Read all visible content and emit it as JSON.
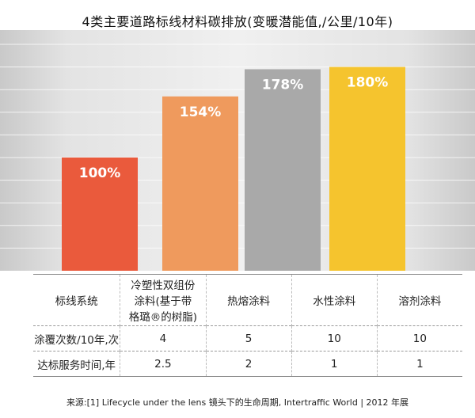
{
  "title": "4类主要道路标线材料碳排放(变暖潜能值,/公里/10年)",
  "chart_data": {
    "type": "bar",
    "categories": [
      "冷塑性双组份涂料(基于带格璐®的树脂)",
      "热熔涂料",
      "水性涂料",
      "溶剂涂料"
    ],
    "values": [
      100,
      154,
      178,
      180
    ],
    "unit": "%",
    "data_labels": [
      "100%",
      "154%",
      "178%",
      "180%"
    ],
    "colors": [
      "#ea5a3c",
      "#ef9a5d",
      "#a9a9a9",
      "#f5c42e"
    ],
    "ylim": [
      0,
      200
    ],
    "grid": true,
    "title": "4类主要道路标线材料碳排放(变暖潜能值,/公里/10年)"
  },
  "table": {
    "header": {
      "label": "标线系统",
      "cols": [
        [
          "冷塑性双组份",
          "涂料(基于带",
          "格璐®的树脂)"
        ],
        [
          "热熔涂料"
        ],
        [
          "水性涂料"
        ],
        [
          "溶剂涂料"
        ]
      ]
    },
    "rows": [
      {
        "label": "涂覆次数/10年,次",
        "values": [
          "4",
          "5",
          "10",
          "10"
        ]
      },
      {
        "label": "达标服务时间,年",
        "values": [
          "2.5",
          "2",
          "1",
          "1"
        ]
      }
    ]
  },
  "source": "来源:[1] Lifecycle under the lens 镜头下的生命周期, Intertraffic World | 2012 年展"
}
